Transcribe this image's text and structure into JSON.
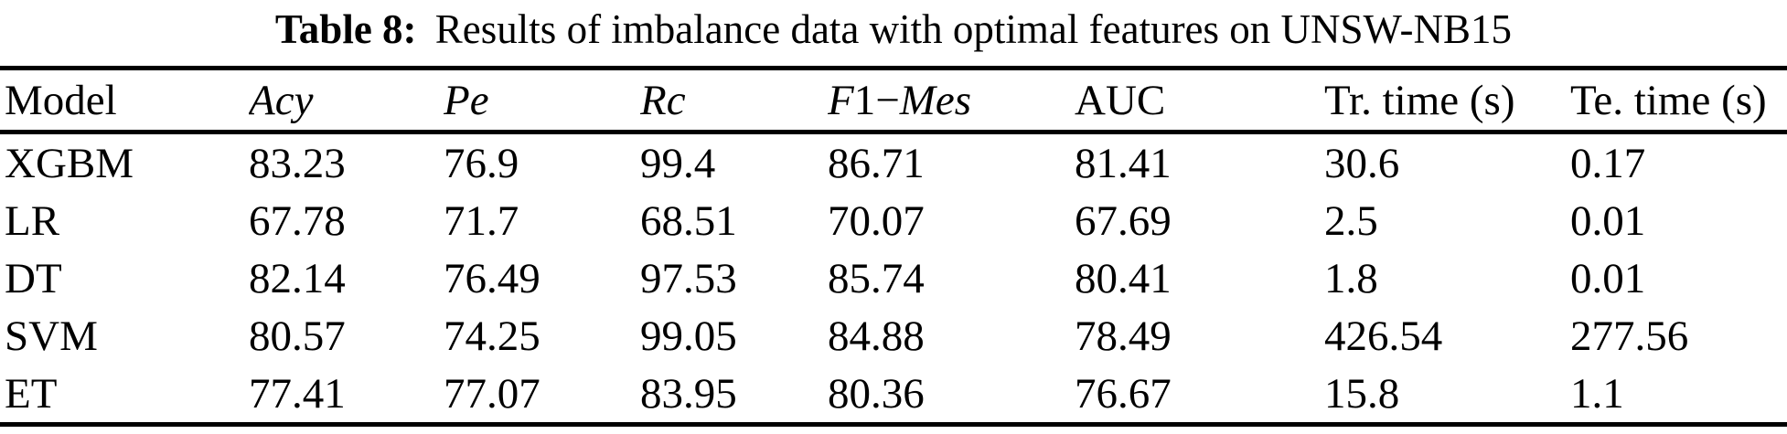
{
  "title": {
    "prefix": "Table 8:",
    "text": "Results of imbalance data with optimal features on UNSW-NB15"
  },
  "table": {
    "columns": [
      {
        "key": "model",
        "parts": [
          {
            "text": "Model",
            "italic": false
          }
        ]
      },
      {
        "key": "acy",
        "parts": [
          {
            "text": "Acy",
            "italic": true
          }
        ]
      },
      {
        "key": "pe",
        "parts": [
          {
            "text": "Pe",
            "italic": true
          }
        ]
      },
      {
        "key": "rc",
        "parts": [
          {
            "text": "Rc",
            "italic": true
          }
        ]
      },
      {
        "key": "f1_mes",
        "parts": [
          {
            "text": "F",
            "italic": true
          },
          {
            "text": "1−",
            "italic": false
          },
          {
            "text": "Mes",
            "italic": true
          }
        ]
      },
      {
        "key": "auc",
        "parts": [
          {
            "text": "AUC",
            "italic": false
          }
        ]
      },
      {
        "key": "tr_time",
        "parts": [
          {
            "text": "Tr. time (s)",
            "italic": false
          }
        ]
      },
      {
        "key": "te_time",
        "parts": [
          {
            "text": "Te. time (s)",
            "italic": false
          }
        ]
      }
    ],
    "rows": [
      {
        "model": "XGBM",
        "values": [
          "83.23",
          "76.9",
          "99.4",
          "86.71",
          "81.41",
          "30.6",
          "0.17"
        ]
      },
      {
        "model": "LR",
        "values": [
          "67.78",
          "71.7",
          "68.51",
          "70.07",
          "67.69",
          "2.5",
          "0.01"
        ]
      },
      {
        "model": "DT",
        "values": [
          "82.14",
          "76.49",
          "97.53",
          "85.74",
          "80.41",
          "1.8",
          "0.01"
        ]
      },
      {
        "model": "SVM",
        "values": [
          "80.57",
          "74.25",
          "99.05",
          "84.88",
          "78.49",
          "426.54",
          "277.56"
        ]
      },
      {
        "model": "ET",
        "values": [
          "77.41",
          "77.07",
          "83.95",
          "80.36",
          "76.67",
          "15.8",
          "1.1"
        ]
      }
    ]
  },
  "colors": {
    "text": "#000000",
    "background": "#ffffff",
    "rule": "#000000"
  }
}
